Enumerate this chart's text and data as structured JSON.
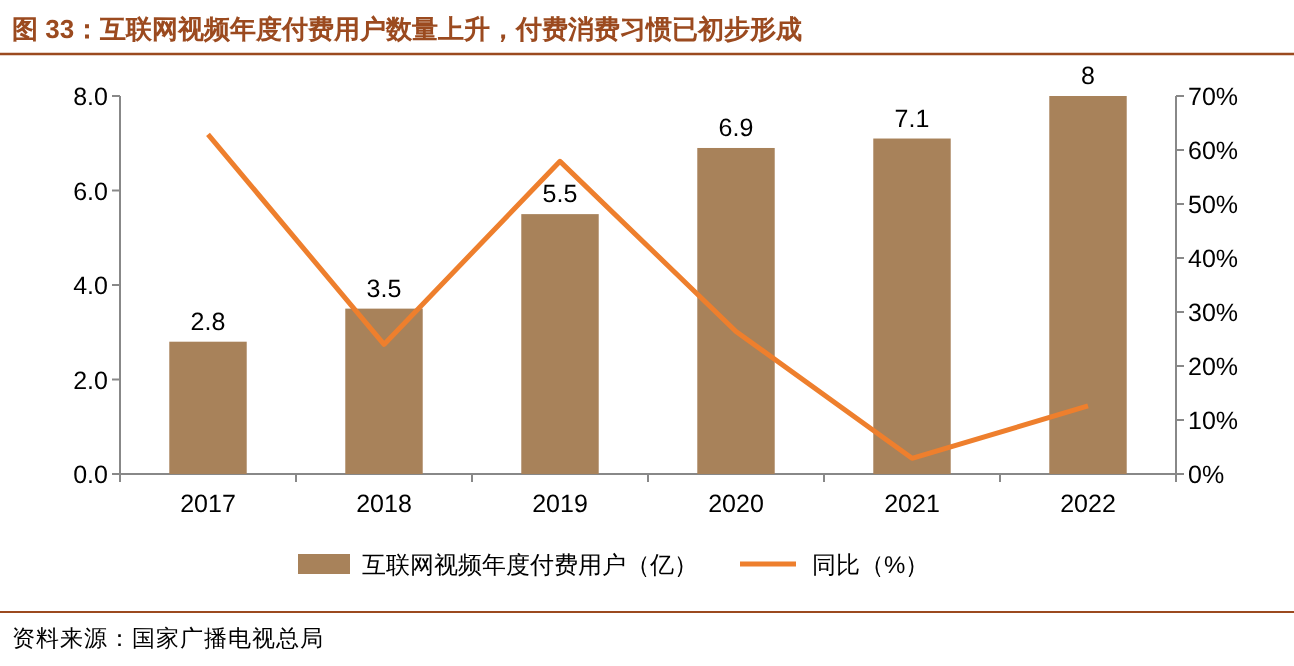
{
  "chart_data": {
    "type": "bar",
    "title": "图 33：互联网视频年度付费用户数量上升，付费消费习惯已初步形成",
    "categories": [
      "2017",
      "2018",
      "2019",
      "2020",
      "2021",
      "2022"
    ],
    "series": [
      {
        "name": "互联网视频年度付费用户（亿）",
        "color": "#a8825a",
        "values": [
          2.8,
          3.5,
          5.5,
          6.9,
          7.1,
          8
        ],
        "value_labels": [
          "2.8",
          "3.5",
          "5.5",
          "6.9",
          "7.1",
          "8"
        ]
      },
      {
        "name": "同比（%）",
        "type": "line",
        "axis": "y2",
        "color": "#ee7f2d",
        "values": [
          62.9,
          24,
          57.9,
          26.4,
          2.9,
          12.6
        ]
      }
    ],
    "ylim": [
      0,
      8
    ],
    "yticks": [
      {
        "value": 0,
        "label": "0.0"
      },
      {
        "value": 2,
        "label": "2.0"
      },
      {
        "value": 4,
        "label": "4.0"
      },
      {
        "value": 6,
        "label": "6.0"
      },
      {
        "value": 8,
        "label": "8.0"
      }
    ],
    "y2lim": [
      0,
      70
    ],
    "y2ticks": [
      {
        "value": 0,
        "label": "0%"
      },
      {
        "value": 10,
        "label": "10%"
      },
      {
        "value": 20,
        "label": "20%"
      },
      {
        "value": 30,
        "label": "30%"
      },
      {
        "value": 40,
        "label": "40%"
      },
      {
        "value": 50,
        "label": "50%"
      },
      {
        "value": 60,
        "label": "60%"
      },
      {
        "value": 70,
        "label": "70%"
      }
    ],
    "legend": "bottom",
    "annotations": [
      "资料来源：国家广播电视总局"
    ]
  }
}
